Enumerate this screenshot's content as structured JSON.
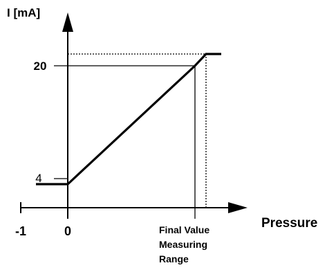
{
  "chart_data": {
    "type": "line",
    "title": "",
    "ylabel": "I [mA]",
    "xlabel": "Pressure",
    "x_ticks": [
      {
        "value": "-1",
        "label": "-1"
      },
      {
        "value": "0",
        "label": "0"
      },
      {
        "value": "FV",
        "label": "Final Value Measuring Range",
        "label_lines": [
          "Final Value",
          "Measuring",
          "Range"
        ]
      }
    ],
    "y_ticks": [
      {
        "value": 4,
        "label": "4"
      },
      {
        "value": 20,
        "label": "20"
      }
    ],
    "series": [
      {
        "points": [
          {
            "x": "-0.6",
            "y": 4
          },
          {
            "x": "0",
            "y": 4
          },
          {
            "x": "FV",
            "y": 20
          },
          {
            "x": "FV+",
            "y": 21
          },
          {
            "x": "FV++",
            "y": 21
          }
        ]
      }
    ],
    "reference_lines": [
      {
        "style": "solid",
        "from": {
          "x": "0",
          "y": 20
        },
        "to": {
          "x": "FV",
          "y": 20
        }
      },
      {
        "style": "solid",
        "from": {
          "x": "FV",
          "y": 20
        },
        "to": {
          "x": "FV",
          "y": 0
        }
      },
      {
        "style": "dotted",
        "from": {
          "x": "0",
          "y": 21
        },
        "to": {
          "x": "FV+",
          "y": 21
        }
      },
      {
        "style": "dotted",
        "from": {
          "x": "FV+",
          "y": 21
        },
        "to": {
          "x": "FV+",
          "y": 0
        }
      }
    ],
    "grid": false,
    "legend": "none",
    "colors": {
      "line": "#000000",
      "background": "#ffffff"
    }
  }
}
